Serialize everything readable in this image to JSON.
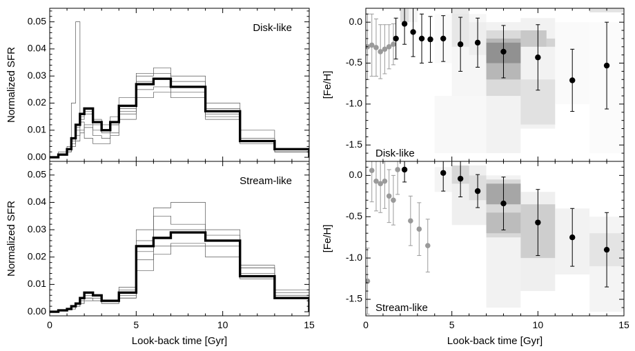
{
  "chart_data": [
    {
      "panel": "top-left",
      "type": "line",
      "style": "step-histogram",
      "annotation": "Disk-like",
      "ylabel": "Normalized SFR",
      "xlabel": "",
      "xlim": [
        0,
        15
      ],
      "ylim": [
        -0.0015,
        0.055
      ],
      "xticks": [
        0,
        5,
        10,
        15
      ],
      "yticks": [
        0.0,
        0.01,
        0.02,
        0.03,
        0.04,
        0.05
      ],
      "ytick_labels": [
        "0.00",
        "0.01",
        "0.02",
        "0.03",
        "0.04",
        "0.05"
      ],
      "bin_edges": [
        0,
        0.5,
        1.0,
        1.25,
        1.5,
        1.75,
        2.0,
        2.5,
        3.0,
        3.5,
        4.0,
        5.0,
        6.0,
        7.0,
        9.0,
        11.0,
        13.0,
        15.0
      ],
      "main_series": {
        "values": [
          0.0,
          0.001,
          0.003,
          0.007,
          0.012,
          0.016,
          0.018,
          0.013,
          0.01,
          0.013,
          0.019,
          0.027,
          0.029,
          0.026,
          0.017,
          0.006,
          0.003
        ]
      },
      "thin_series": [
        {
          "values": [
            0.0,
            0.001,
            0.004,
            0.02,
            0.05,
            0.013,
            0.007,
            0.005,
            0.005,
            0.008,
            0.016,
            0.03,
            0.033,
            0.03,
            0.02,
            0.01,
            0.003
          ]
        },
        {
          "values": [
            0.0,
            0.001,
            0.002,
            0.006,
            0.01,
            0.014,
            0.016,
            0.014,
            0.012,
            0.015,
            0.022,
            0.031,
            0.031,
            0.028,
            0.018,
            0.007,
            0.002
          ]
        },
        {
          "values": [
            0.0,
            0.001,
            0.002,
            0.005,
            0.008,
            0.01,
            0.012,
            0.01,
            0.009,
            0.012,
            0.018,
            0.028,
            0.029,
            0.026,
            0.016,
            0.006,
            0.002
          ]
        },
        {
          "values": [
            0.0,
            0.002,
            0.003,
            0.007,
            0.011,
            0.015,
            0.017,
            0.012,
            0.01,
            0.012,
            0.017,
            0.025,
            0.026,
            0.024,
            0.015,
            0.006,
            0.002
          ]
        },
        {
          "values": [
            0.0,
            0.001,
            0.002,
            0.004,
            0.006,
            0.009,
            0.011,
            0.008,
            0.007,
            0.009,
            0.014,
            0.022,
            0.024,
            0.022,
            0.014,
            0.005,
            0.002
          ]
        }
      ]
    },
    {
      "panel": "bottom-left",
      "type": "line",
      "style": "step-histogram",
      "annotation": "Stream-like",
      "ylabel": "Normalized SFR",
      "xlabel": "Look-back time [Gyr]",
      "xlim": [
        0,
        15
      ],
      "ylim": [
        -0.0015,
        0.055
      ],
      "xticks": [
        0,
        5,
        10,
        15
      ],
      "yticks": [
        0.0,
        0.01,
        0.02,
        0.03,
        0.04,
        0.05
      ],
      "ytick_labels": [
        "0.00",
        "0.01",
        "0.02",
        "0.03",
        "0.04",
        "0.05"
      ],
      "bin_edges": [
        0,
        0.5,
        1.0,
        1.25,
        1.5,
        1.75,
        2.0,
        2.5,
        3.0,
        3.5,
        4.0,
        5.0,
        6.0,
        7.0,
        9.0,
        11.0,
        13.0,
        15.0
      ],
      "main_series": {
        "values": [
          0.0,
          0.0005,
          0.001,
          0.002,
          0.003,
          0.005,
          0.007,
          0.006,
          0.004,
          0.004,
          0.007,
          0.024,
          0.027,
          0.029,
          0.026,
          0.013,
          0.005
        ]
      },
      "thin_series": [
        {
          "values": [
            0.0,
            0.0005,
            0.001,
            0.002,
            0.003,
            0.004,
            0.005,
            0.005,
            0.004,
            0.004,
            0.009,
            0.03,
            0.038,
            0.04,
            0.03,
            0.016,
            0.006
          ]
        },
        {
          "values": [
            0.0,
            0.0005,
            0.001,
            0.002,
            0.003,
            0.004,
            0.006,
            0.006,
            0.004,
            0.004,
            0.006,
            0.022,
            0.03,
            0.03,
            0.028,
            0.014,
            0.005
          ]
        },
        {
          "values": [
            0.0,
            0.0005,
            0.001,
            0.002,
            0.002,
            0.003,
            0.005,
            0.004,
            0.003,
            0.003,
            0.005,
            0.019,
            0.024,
            0.025,
            0.024,
            0.016,
            0.007
          ]
        },
        {
          "values": [
            0.0,
            0.0005,
            0.001,
            0.001,
            0.002,
            0.003,
            0.004,
            0.004,
            0.003,
            0.003,
            0.005,
            0.015,
            0.021,
            0.024,
            0.02,
            0.012,
            0.005
          ]
        },
        {
          "values": [
            0.0,
            0.0005,
            0.001,
            0.002,
            0.003,
            0.004,
            0.004,
            0.004,
            0.004,
            0.004,
            0.008,
            0.026,
            0.035,
            0.032,
            0.026,
            0.017,
            0.008
          ]
        }
      ]
    },
    {
      "panel": "top-right",
      "type": "scatter",
      "style": "density-with-errorbars",
      "annotation": "Disk-like",
      "ylabel": "[Fe/H]",
      "xlabel": "",
      "xlim": [
        0,
        15
      ],
      "ylim": [
        -1.7,
        0.17
      ],
      "xticks": [
        0,
        5,
        10,
        15
      ],
      "yticks": [
        0.0,
        -0.5,
        -1.0,
        -1.5
      ],
      "ytick_labels": [
        "0.0",
        "-0.5",
        "-1.0",
        "-1.5"
      ],
      "gray_points": {
        "x": [
          0.1,
          0.35,
          0.6,
          0.85,
          1.1,
          1.35,
          1.6
        ],
        "y": [
          -0.3,
          -0.28,
          -0.31,
          -0.36,
          -0.33,
          -0.3,
          -0.27
        ],
        "err": [
          0.4,
          0.38,
          0.35,
          0.33,
          0.3,
          0.27,
          0.25
        ]
      },
      "black_points": {
        "x": [
          1.75,
          2.25,
          2.75,
          3.25,
          3.75,
          4.5,
          5.5,
          6.5,
          8.0,
          10.0,
          12.0,
          14.0
        ],
        "y": [
          -0.2,
          -0.02,
          -0.12,
          -0.2,
          -0.21,
          -0.2,
          -0.27,
          -0.25,
          -0.36,
          -0.43,
          -0.71,
          -0.53
        ],
        "err": [
          0.25,
          0.25,
          0.3,
          0.3,
          0.28,
          0.28,
          0.33,
          0.3,
          0.32,
          0.4,
          0.38,
          0.53
        ]
      },
      "density_cells": [
        {
          "x0": 2.0,
          "x1": 2.5,
          "y0": 0.0,
          "y1": 0.17,
          "v": 0.3
        },
        {
          "x0": 2.5,
          "x1": 3.0,
          "y0": 0.0,
          "y1": 0.17,
          "v": 0.1
        },
        {
          "x0": 4.0,
          "x1": 5.0,
          "y0": -0.5,
          "y1": 0.1,
          "v": 0.05
        },
        {
          "x0": 5.0,
          "x1": 7.0,
          "y0": -0.9,
          "y1": 0.1,
          "v": 0.08
        },
        {
          "x0": 5.0,
          "x1": 6.0,
          "y0": -0.3,
          "y1": 0.17,
          "v": 0.18
        },
        {
          "x0": 6.0,
          "x1": 7.0,
          "y0": -0.4,
          "y1": 0.0,
          "v": 0.12
        },
        {
          "x0": 4.0,
          "x1": 7.0,
          "y0": -1.6,
          "y1": -0.9,
          "v": 0.06
        },
        {
          "x0": 7.0,
          "x1": 9.0,
          "y0": -1.6,
          "y1": 0.0,
          "v": 0.12
        },
        {
          "x0": 7.0,
          "x1": 9.0,
          "y0": -0.9,
          "y1": -0.1,
          "v": 0.28
        },
        {
          "x0": 7.0,
          "x1": 9.0,
          "y0": -0.7,
          "y1": -0.2,
          "v": 0.5
        },
        {
          "x0": 7.0,
          "x1": 9.0,
          "y0": -0.5,
          "y1": -0.25,
          "v": 0.7
        },
        {
          "x0": 9.0,
          "x1": 11.0,
          "y0": -1.3,
          "y1": 0.05,
          "v": 0.12
        },
        {
          "x0": 9.0,
          "x1": 11.0,
          "y0": -1.25,
          "y1": -0.7,
          "v": 0.22
        },
        {
          "x0": 9.0,
          "x1": 10.5,
          "y0": -0.3,
          "y1": -0.1,
          "v": 0.45
        },
        {
          "x0": 10.5,
          "x1": 11.0,
          "y0": -0.3,
          "y1": -0.2,
          "v": 0.35
        },
        {
          "x0": 11.0,
          "x1": 13.0,
          "y0": -1.0,
          "y1": 0.0,
          "v": 0.05
        },
        {
          "x0": 13.0,
          "x1": 15.0,
          "y0": -1.6,
          "y1": 0.0,
          "v": 0.04
        },
        {
          "x0": 13.0,
          "x1": 15.0,
          "y0": 0.12,
          "y1": 0.17,
          "v": 0.25
        }
      ]
    },
    {
      "panel": "bottom-right",
      "type": "scatter",
      "style": "density-with-errorbars",
      "annotation": "Stream-like",
      "ylabel": "[Fe/H]",
      "xlabel": "Look-back time [Gyr]",
      "xlim": [
        0,
        15
      ],
      "ylim": [
        -1.7,
        0.17
      ],
      "xticks": [
        0,
        5,
        10,
        15
      ],
      "yticks": [
        0.0,
        -0.5,
        -1.0,
        -1.5
      ],
      "ytick_labels": [
        "0.0",
        "-0.5",
        "-1.0",
        "-1.5"
      ],
      "gray_points": {
        "x": [
          0.1,
          0.35,
          0.6,
          0.85,
          1.1,
          1.35,
          1.6,
          1.85,
          2.6,
          3.1,
          3.6
        ],
        "y": [
          -1.28,
          0.06,
          -0.07,
          -0.1,
          -0.07,
          -0.25,
          -0.3,
          0.07,
          -0.55,
          -0.65,
          -0.85
        ],
        "err": [
          0.4,
          0.38,
          0.36,
          0.35,
          0.33,
          0.32,
          0.3,
          0.3,
          0.3,
          0.32,
          0.32
        ]
      },
      "black_points": {
        "x": [
          2.25,
          4.5,
          5.5,
          6.5,
          8.0,
          10.0,
          12.0,
          14.0
        ],
        "y": [
          0.07,
          0.03,
          -0.04,
          -0.19,
          -0.34,
          -0.57,
          -0.75,
          -0.9
        ],
        "err": [
          0.15,
          0.22,
          0.22,
          0.2,
          0.32,
          0.4,
          0.35,
          0.45
        ]
      },
      "density_cells": [
        {
          "x0": 4.0,
          "x1": 5.0,
          "y0": -0.2,
          "y1": 0.1,
          "v": 0.1
        },
        {
          "x0": 5.0,
          "x1": 7.0,
          "y0": -0.6,
          "y1": 0.12,
          "v": 0.15
        },
        {
          "x0": 5.0,
          "x1": 6.0,
          "y0": -0.1,
          "y1": 0.12,
          "v": 0.3
        },
        {
          "x0": 6.0,
          "x1": 7.0,
          "y0": -0.3,
          "y1": 0.0,
          "v": 0.25
        },
        {
          "x0": 7.0,
          "x1": 9.0,
          "y0": -1.6,
          "y1": 0.0,
          "v": 0.12
        },
        {
          "x0": 7.0,
          "x1": 9.0,
          "y0": -0.75,
          "y1": -0.05,
          "v": 0.3
        },
        {
          "x0": 7.0,
          "x1": 9.0,
          "y0": -0.35,
          "y1": -0.1,
          "v": 0.65
        },
        {
          "x0": 7.0,
          "x1": 9.0,
          "y0": -0.7,
          "y1": -0.45,
          "v": 0.45
        },
        {
          "x0": 9.0,
          "x1": 11.0,
          "y0": -1.4,
          "y1": -0.2,
          "v": 0.15
        },
        {
          "x0": 9.0,
          "x1": 11.0,
          "y0": -1.0,
          "y1": -0.35,
          "v": 0.38
        },
        {
          "x0": 11.0,
          "x1": 13.0,
          "y0": -1.2,
          "y1": -0.4,
          "v": 0.12
        },
        {
          "x0": 13.0,
          "x1": 15.0,
          "y0": -1.65,
          "y1": -0.5,
          "v": 0.1
        },
        {
          "x0": 13.0,
          "x1": 15.0,
          "y0": -1.1,
          "y1": -0.7,
          "v": 0.2
        }
      ]
    }
  ]
}
